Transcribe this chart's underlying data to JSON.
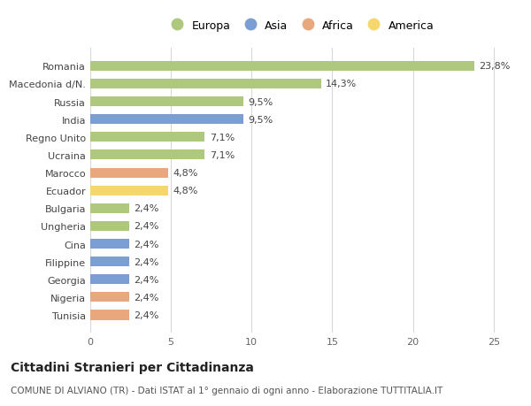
{
  "categories": [
    "Romania",
    "Macedonia d/N.",
    "Russia",
    "India",
    "Regno Unito",
    "Ucraina",
    "Marocco",
    "Ecuador",
    "Bulgaria",
    "Ungheria",
    "Cina",
    "Filippine",
    "Georgia",
    "Nigeria",
    "Tunisia"
  ],
  "values": [
    23.8,
    14.3,
    9.5,
    9.5,
    7.1,
    7.1,
    4.8,
    4.8,
    2.4,
    2.4,
    2.4,
    2.4,
    2.4,
    2.4,
    2.4
  ],
  "labels": [
    "23,8%",
    "14,3%",
    "9,5%",
    "9,5%",
    "7,1%",
    "7,1%",
    "4,8%",
    "4,8%",
    "2,4%",
    "2,4%",
    "2,4%",
    "2,4%",
    "2,4%",
    "2,4%",
    "2,4%"
  ],
  "continents": [
    "Europa",
    "Europa",
    "Europa",
    "Asia",
    "Europa",
    "Europa",
    "Africa",
    "America",
    "Europa",
    "Europa",
    "Asia",
    "Asia",
    "Asia",
    "Africa",
    "Africa"
  ],
  "continent_colors": {
    "Europa": "#aec97e",
    "Asia": "#7b9fd4",
    "Africa": "#e8a87c",
    "America": "#f5d76e"
  },
  "legend_order": [
    "Europa",
    "Asia",
    "Africa",
    "America"
  ],
  "xlim": [
    0,
    26
  ],
  "xticks": [
    0,
    5,
    10,
    15,
    20,
    25
  ],
  "title": "Cittadini Stranieri per Cittadinanza",
  "subtitle": "COMUNE DI ALVIANO (TR) - Dati ISTAT al 1° gennaio di ogni anno - Elaborazione TUTTITALIA.IT",
  "bg_color": "#ffffff",
  "grid_color": "#d8d8d8",
  "bar_height": 0.55,
  "label_fontsize": 8,
  "ytick_fontsize": 8,
  "xtick_fontsize": 8,
  "title_fontsize": 10,
  "subtitle_fontsize": 7.5
}
